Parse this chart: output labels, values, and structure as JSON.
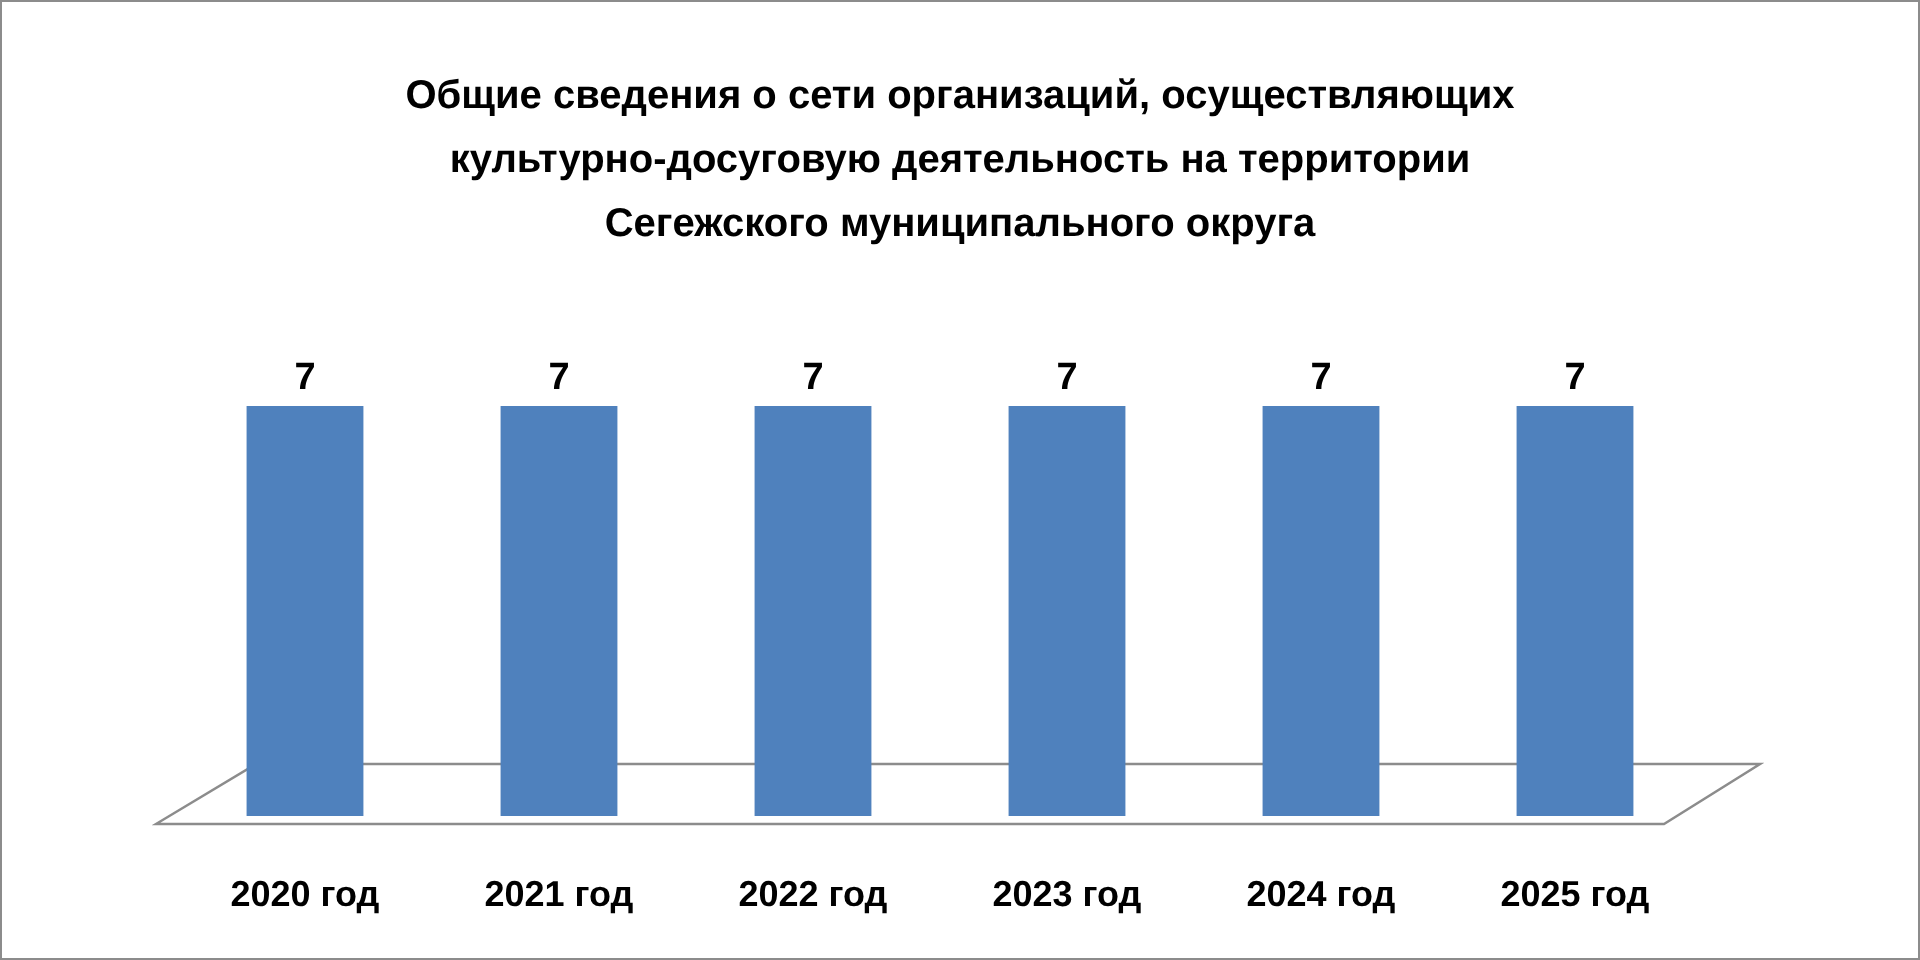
{
  "chart_data": {
    "type": "bar",
    "title": "Общие сведения о сети организаций, осуществляющих культурно-досуговую деятельность на территории Сегежского муниципального округа",
    "categories": [
      "2020 год",
      "2021 год",
      "2022 год",
      "2023 год",
      "2024 год",
      "2025 год"
    ],
    "values": [
      7,
      7,
      7,
      7,
      7,
      7
    ],
    "color": "#4f81bd",
    "data_labels": true,
    "tick_labels": "x"
  }
}
